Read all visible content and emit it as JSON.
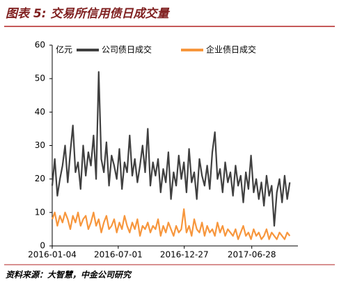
{
  "chart_data": {
    "type": "line",
    "title": "图表 5: 交易所信用债日成交量",
    "unit": "亿元",
    "source": "资料来源：大智慧，中金公司研究",
    "x": [
      "2016-01-04",
      "2016-01-11",
      "2016-01-18",
      "2016-01-25",
      "2016-02-01",
      "2016-02-08",
      "2016-02-15",
      "2016-02-22",
      "2016-02-29",
      "2016-03-07",
      "2016-03-14",
      "2016-03-21",
      "2016-03-28",
      "2016-04-04",
      "2016-04-11",
      "2016-04-18",
      "2016-04-25",
      "2016-05-02",
      "2016-05-09",
      "2016-05-16",
      "2016-05-23",
      "2016-05-30",
      "2016-06-06",
      "2016-06-13",
      "2016-06-20",
      "2016-06-27",
      "2016-07-04",
      "2016-07-11",
      "2016-07-18",
      "2016-07-25",
      "2016-08-01",
      "2016-08-08",
      "2016-08-15",
      "2016-08-22",
      "2016-08-29",
      "2016-09-05",
      "2016-09-12",
      "2016-09-19",
      "2016-09-26",
      "2016-10-03",
      "2016-10-10",
      "2016-10-17",
      "2016-10-24",
      "2016-10-31",
      "2016-11-07",
      "2016-11-14",
      "2016-11-21",
      "2016-11-28",
      "2016-12-05",
      "2016-12-12",
      "2016-12-19",
      "2016-12-26",
      "2017-01-02",
      "2017-01-09",
      "2017-01-16",
      "2017-01-23",
      "2017-01-30",
      "2017-02-06",
      "2017-02-13",
      "2017-02-20",
      "2017-02-27",
      "2017-03-06",
      "2017-03-13",
      "2017-03-20",
      "2017-03-27",
      "2017-04-03",
      "2017-04-10",
      "2017-04-17",
      "2017-04-24",
      "2017-05-01",
      "2017-05-08",
      "2017-05-15",
      "2017-05-22",
      "2017-05-29",
      "2017-06-05",
      "2017-06-12",
      "2017-06-19",
      "2017-06-26",
      "2017-07-03",
      "2017-07-10",
      "2017-07-17",
      "2017-07-24",
      "2017-07-31",
      "2017-08-07",
      "2017-08-14",
      "2017-08-21",
      "2017-08-28",
      "2017-09-04",
      "2017-09-11",
      "2017-09-18",
      "2017-09-25",
      "2017-10-02",
      "2017-10-09"
    ],
    "series": [
      {
        "name": "公司债日成交",
        "color": "#404040",
        "values": [
          18,
          26,
          15,
          20,
          24,
          30,
          19,
          28,
          36,
          22,
          25,
          17,
          30,
          21,
          28,
          24,
          33,
          20,
          52,
          26,
          22,
          31,
          18,
          27,
          24,
          20,
          29,
          17,
          25,
          22,
          33,
          21,
          26,
          19,
          24,
          30,
          22,
          35,
          18,
          25,
          21,
          26,
          16,
          23,
          19,
          28,
          14,
          22,
          18,
          27,
          20,
          25,
          16,
          29,
          19,
          22,
          14,
          26,
          21,
          18,
          24,
          17,
          28,
          34,
          20,
          23,
          16,
          25,
          19,
          22,
          15,
          24,
          18,
          21,
          13,
          22,
          17,
          27,
          16,
          20,
          14,
          19,
          12,
          21,
          15,
          18,
          6,
          16,
          20,
          13,
          21,
          14,
          19
        ]
      },
      {
        "name": "企业债日成交",
        "color": "#f7963c",
        "values": [
          8,
          10,
          6,
          9,
          7,
          10,
          8,
          5,
          9,
          7,
          10,
          6,
          8,
          9,
          5,
          7,
          10,
          6,
          8,
          4,
          7,
          9,
          5,
          6,
          8,
          4,
          7,
          5,
          9,
          6,
          4,
          7,
          5,
          8,
          3,
          6,
          5,
          7,
          4,
          6,
          5,
          8,
          3,
          6,
          4,
          7,
          5,
          3,
          6,
          4,
          5,
          11,
          4,
          6,
          3,
          8,
          5,
          4,
          7,
          3,
          6,
          4,
          5,
          3,
          7,
          4,
          6,
          3,
          5,
          4,
          3,
          5,
          2,
          4,
          6,
          3,
          4,
          2,
          5,
          3,
          4,
          2,
          3,
          5,
          2,
          4,
          3,
          2,
          4,
          3,
          2,
          4,
          3
        ]
      }
    ],
    "xlim": [
      "2016-01-04",
      "2017-10-16"
    ],
    "xticks": [
      "2016-01-04",
      "2016-07-01",
      "2016-12-27",
      "2017-06-28"
    ],
    "ylim": [
      0,
      60
    ],
    "yticks": [
      0,
      10,
      20,
      30,
      40,
      50,
      60
    ]
  }
}
